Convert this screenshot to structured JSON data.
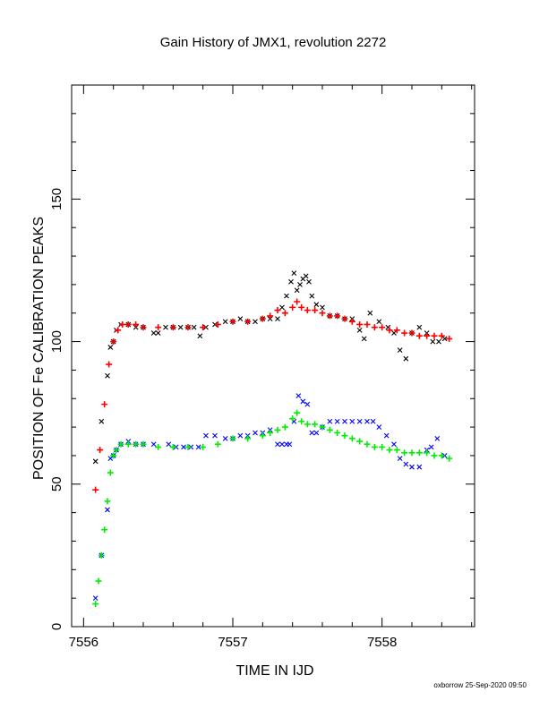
{
  "chart_data": {
    "type": "scatter",
    "title": "Gain History of JMX1, revolution 2272",
    "xlabel": "TIME IN IJD",
    "ylabel": "POSITION OF Fe CALIBRATION PEAKS",
    "footer": "oxborrow 25-Sep-2020 09:50",
    "xlim": [
      7555.92,
      7558.62
    ],
    "ylim": [
      0,
      190
    ],
    "x_ticks": [
      "7556",
      "7557",
      "7558"
    ],
    "x_tick_values": [
      7556,
      7557,
      7558
    ],
    "y_ticks": [
      "0",
      "50",
      "100",
      "150"
    ],
    "y_tick_values": [
      0,
      50,
      100,
      150
    ],
    "grid": false,
    "legend": "none",
    "series": [
      {
        "marker": "x",
        "color": "#000000",
        "x": [
          7556.08,
          7556.12,
          7556.16,
          7556.18,
          7556.2,
          7556.22,
          7556.25,
          7556.3,
          7556.35,
          7556.4,
          7556.47,
          7556.5,
          7556.55,
          7556.6,
          7556.65,
          7556.7,
          7556.74,
          7556.78,
          7556.82,
          7556.88,
          7556.95,
          7557.0,
          7557.05,
          7557.1,
          7557.15,
          7557.2,
          7557.25,
          7557.3,
          7557.33,
          7557.36,
          7557.39,
          7557.41,
          7557.43,
          7557.45,
          7557.47,
          7557.49,
          7557.51,
          7557.53,
          7557.56,
          7557.6,
          7557.65,
          7557.7,
          7557.75,
          7557.8,
          7557.85,
          7557.88,
          7557.92,
          7557.98,
          7558.04,
          7558.08,
          7558.12,
          7558.16,
          7558.2,
          7558.25,
          7558.3,
          7558.34,
          7558.38,
          7558.42
        ],
        "y": [
          58,
          72,
          88,
          98,
          100,
          104,
          106,
          106,
          105,
          105,
          103,
          103,
          105,
          105,
          105,
          105,
          105,
          102,
          105,
          106,
          107,
          107,
          108,
          107,
          107,
          108,
          108,
          108,
          112,
          116,
          121,
          124,
          118,
          120,
          122,
          123,
          121,
          116,
          113,
          112,
          109,
          109,
          108,
          108,
          104,
          101,
          110,
          107,
          105,
          103,
          97,
          94,
          103,
          105,
          103,
          100,
          100,
          101
        ]
      },
      {
        "marker": "x",
        "color": "#0000ff",
        "x": [
          7556.08,
          7556.12,
          7556.16,
          7556.18,
          7556.2,
          7556.22,
          7556.25,
          7556.3,
          7556.35,
          7556.4,
          7556.47,
          7556.57,
          7556.62,
          7556.67,
          7556.72,
          7556.77,
          7556.82,
          7556.88,
          7556.95,
          7557.0,
          7557.05,
          7557.1,
          7557.15,
          7557.2,
          7557.25,
          7557.3,
          7557.33,
          7557.36,
          7557.38,
          7557.41,
          7557.44,
          7557.47,
          7557.5,
          7557.53,
          7557.56,
          7557.6,
          7557.65,
          7557.7,
          7557.75,
          7557.8,
          7557.85,
          7557.9,
          7557.94,
          7557.98,
          7558.03,
          7558.08,
          7558.12,
          7558.16,
          7558.2,
          7558.25,
          7558.3,
          7558.33,
          7558.37,
          7558.42
        ],
        "y": [
          10,
          25,
          41,
          59,
          60,
          62,
          64,
          65,
          64,
          64,
          64,
          64,
          63,
          63,
          63,
          63,
          67,
          67,
          66,
          66,
          67,
          67,
          68,
          68,
          69,
          64,
          64,
          64,
          64,
          72,
          81,
          79,
          78,
          68,
          68,
          70,
          72,
          72,
          72,
          72,
          72,
          72,
          72,
          70,
          67,
          64,
          59,
          57,
          56,
          56,
          62,
          63,
          66,
          60
        ]
      },
      {
        "marker": "+",
        "color": "#ff0000",
        "x": [
          7556.08,
          7556.11,
          7556.14,
          7556.17,
          7556.2,
          7556.23,
          7556.26,
          7556.3,
          7556.35,
          7556.4,
          7556.5,
          7556.6,
          7556.7,
          7556.8,
          7556.9,
          7557.0,
          7557.1,
          7557.2,
          7557.25,
          7557.3,
          7557.35,
          7557.4,
          7557.43,
          7557.46,
          7557.5,
          7557.55,
          7557.6,
          7557.65,
          7557.7,
          7557.75,
          7557.8,
          7557.85,
          7557.9,
          7557.95,
          7558.0,
          7558.05,
          7558.1,
          7558.15,
          7558.2,
          7558.25,
          7558.3,
          7558.35,
          7558.4,
          7558.45
        ],
        "y": [
          48,
          62,
          78,
          92,
          100,
          104,
          106,
          106,
          106,
          105,
          105,
          105,
          105,
          105,
          106,
          107,
          107,
          108,
          109,
          111,
          110,
          112,
          114,
          112,
          111,
          111,
          110,
          109,
          109,
          108,
          107,
          106,
          106,
          105,
          105,
          104,
          104,
          103,
          103,
          102,
          102,
          102,
          102,
          101
        ]
      },
      {
        "marker": "+",
        "color": "#00ee00",
        "x": [
          7556.08,
          7556.1,
          7556.12,
          7556.14,
          7556.16,
          7556.18,
          7556.2,
          7556.22,
          7556.25,
          7556.3,
          7556.35,
          7556.4,
          7556.5,
          7556.6,
          7556.7,
          7556.8,
          7556.9,
          7557.0,
          7557.1,
          7557.2,
          7557.25,
          7557.3,
          7557.35,
          7557.4,
          7557.43,
          7557.46,
          7557.5,
          7557.55,
          7557.6,
          7557.65,
          7557.7,
          7557.75,
          7557.8,
          7557.85,
          7557.9,
          7557.95,
          7558.0,
          7558.05,
          7558.1,
          7558.15,
          7558.2,
          7558.25,
          7558.3,
          7558.35,
          7558.4,
          7558.45
        ],
        "y": [
          8,
          16,
          25,
          34,
          44,
          54,
          60,
          62,
          64,
          64,
          64,
          64,
          63,
          63,
          63,
          63,
          64,
          66,
          66,
          67,
          68,
          69,
          70,
          73,
          75,
          72,
          71,
          71,
          70,
          69,
          68,
          67,
          66,
          65,
          64,
          63,
          63,
          62,
          62,
          61,
          61,
          61,
          61,
          60,
          60,
          59
        ]
      }
    ]
  }
}
